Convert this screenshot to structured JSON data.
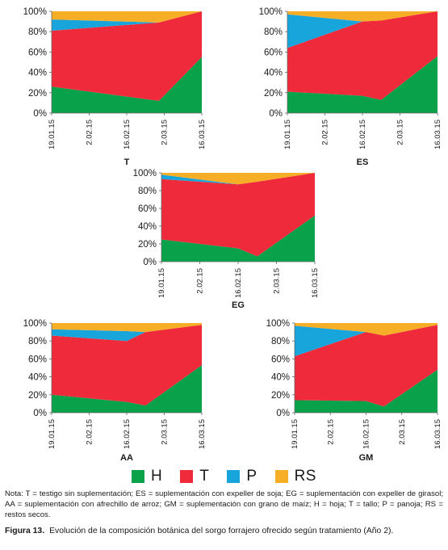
{
  "chart_data": [
    {
      "type": "area",
      "title": "T",
      "categories": [
        "19.01.15",
        "2.02.15",
        "16.02.15",
        "2.03.15",
        "16.03.15"
      ],
      "x_positions": [
        0,
        14,
        28,
        42,
        56
      ],
      "ylim": [
        0,
        100
      ],
      "yticks": [
        "0%",
        "20%",
        "40%",
        "60%",
        "80%",
        "100%"
      ],
      "series": [
        {
          "name": "H",
          "x": [
            0,
            40,
            56
          ],
          "values": [
            26,
            12,
            55
          ]
        },
        {
          "name": "T",
          "x": [
            0,
            40,
            56
          ],
          "values": [
            55,
            77,
            45
          ]
        },
        {
          "name": "P",
          "x": [
            0,
            40,
            56
          ],
          "values": [
            11,
            0,
            0
          ]
        },
        {
          "name": "RS",
          "x": [
            0,
            40,
            56
          ],
          "values": [
            8,
            11,
            0
          ]
        }
      ]
    },
    {
      "type": "area",
      "title": "ES",
      "categories": [
        "19.01.15",
        "2.02.15",
        "16.02.15",
        "2.03.15",
        "16.03.15"
      ],
      "x_positions": [
        0,
        14,
        28,
        42,
        56
      ],
      "ylim": [
        0,
        100
      ],
      "yticks": [
        "0%",
        "20%",
        "40%",
        "60%",
        "80%",
        "100%"
      ],
      "series": [
        {
          "name": "H",
          "x": [
            0,
            28,
            35,
            56
          ],
          "values": [
            21,
            17,
            13,
            56
          ]
        },
        {
          "name": "T",
          "x": [
            0,
            28,
            35,
            56
          ],
          "values": [
            43,
            73,
            78,
            44
          ]
        },
        {
          "name": "P",
          "x": [
            0,
            28,
            35,
            56
          ],
          "values": [
            33,
            0,
            0,
            0
          ]
        },
        {
          "name": "RS",
          "x": [
            0,
            28,
            35,
            56
          ],
          "values": [
            3,
            10,
            9,
            0
          ]
        }
      ]
    },
    {
      "type": "area",
      "title": "EG",
      "categories": [
        "19.01.15",
        "2.02.15",
        "16.02.15",
        "2.03.15",
        "16.03.15"
      ],
      "x_positions": [
        0,
        14,
        28,
        42,
        56
      ],
      "ylim": [
        0,
        100
      ],
      "yticks": [
        "0%",
        "20%",
        "40%",
        "60%",
        "80%",
        "100%"
      ],
      "series": [
        {
          "name": "H",
          "x": [
            0,
            28,
            35,
            56
          ],
          "values": [
            25,
            15,
            6,
            52
          ]
        },
        {
          "name": "T",
          "x": [
            0,
            28,
            35,
            56
          ],
          "values": [
            68,
            72,
            84,
            48
          ]
        },
        {
          "name": "P",
          "x": [
            0,
            28,
            35,
            56
          ],
          "values": [
            5,
            0,
            0,
            0
          ]
        },
        {
          "name": "RS",
          "x": [
            0,
            28,
            35,
            56
          ],
          "values": [
            2,
            13,
            10,
            0
          ]
        }
      ]
    },
    {
      "type": "area",
      "title": "AA",
      "categories": [
        "19.01.15",
        "2.02.15",
        "16.02.15",
        "2.03.15",
        "16.03.15"
      ],
      "x_positions": [
        0,
        14,
        28,
        42,
        56
      ],
      "ylim": [
        0,
        100
      ],
      "yticks": [
        "0%",
        "20%",
        "40%",
        "60%",
        "80%",
        "100%"
      ],
      "series": [
        {
          "name": "H",
          "x": [
            0,
            28,
            35,
            56
          ],
          "values": [
            20,
            12,
            8,
            53
          ]
        },
        {
          "name": "T",
          "x": [
            0,
            28,
            35,
            56
          ],
          "values": [
            66,
            68,
            82,
            45
          ]
        },
        {
          "name": "P",
          "x": [
            0,
            28,
            35,
            56
          ],
          "values": [
            7,
            11,
            0,
            0
          ]
        },
        {
          "name": "RS",
          "x": [
            0,
            28,
            35,
            56
          ],
          "values": [
            7,
            9,
            10,
            2
          ]
        }
      ]
    },
    {
      "type": "area",
      "title": "GM",
      "categories": [
        "19.01.15",
        "2.02.15",
        "16.02.15",
        "2.03.15",
        "16.03.15"
      ],
      "x_positions": [
        0,
        14,
        28,
        42,
        56
      ],
      "ylim": [
        0,
        100
      ],
      "yticks": [
        "0%",
        "20%",
        "40%",
        "60%",
        "80%",
        "100%"
      ],
      "series": [
        {
          "name": "H",
          "x": [
            0,
            28,
            35,
            56
          ],
          "values": [
            14,
            13,
            7,
            48
          ]
        },
        {
          "name": "T",
          "x": [
            0,
            28,
            35,
            56
          ],
          "values": [
            49,
            77,
            79,
            50
          ]
        },
        {
          "name": "P",
          "x": [
            0,
            28,
            35,
            56
          ],
          "values": [
            34,
            0,
            0,
            0
          ]
        },
        {
          "name": "RS",
          "x": [
            0,
            28,
            35,
            56
          ],
          "values": [
            3,
            10,
            14,
            2
          ]
        }
      ]
    }
  ],
  "legend": [
    {
      "name": "H",
      "color": "#0aa14b"
    },
    {
      "name": "T",
      "color": "#ee2a3b"
    },
    {
      "name": "P",
      "color": "#17a5dc"
    },
    {
      "name": "RS",
      "color": "#f6ae27"
    }
  ],
  "note": "Nota: T = testigo sin suplementación; ES = suplementación con expeller de soja; EG = suplementación con expeller de girasol; AA = suplementación con afrechillo de arroz; GM = suplementación con grano de maíz; H = hoja; T = tallo; P = panoja; RS = restos secos.",
  "caption": {
    "label": "Figura 13.",
    "text": "Evolución de la composición botánica del sorgo forrajero ofrecido según tratamiento (Año 2)."
  }
}
